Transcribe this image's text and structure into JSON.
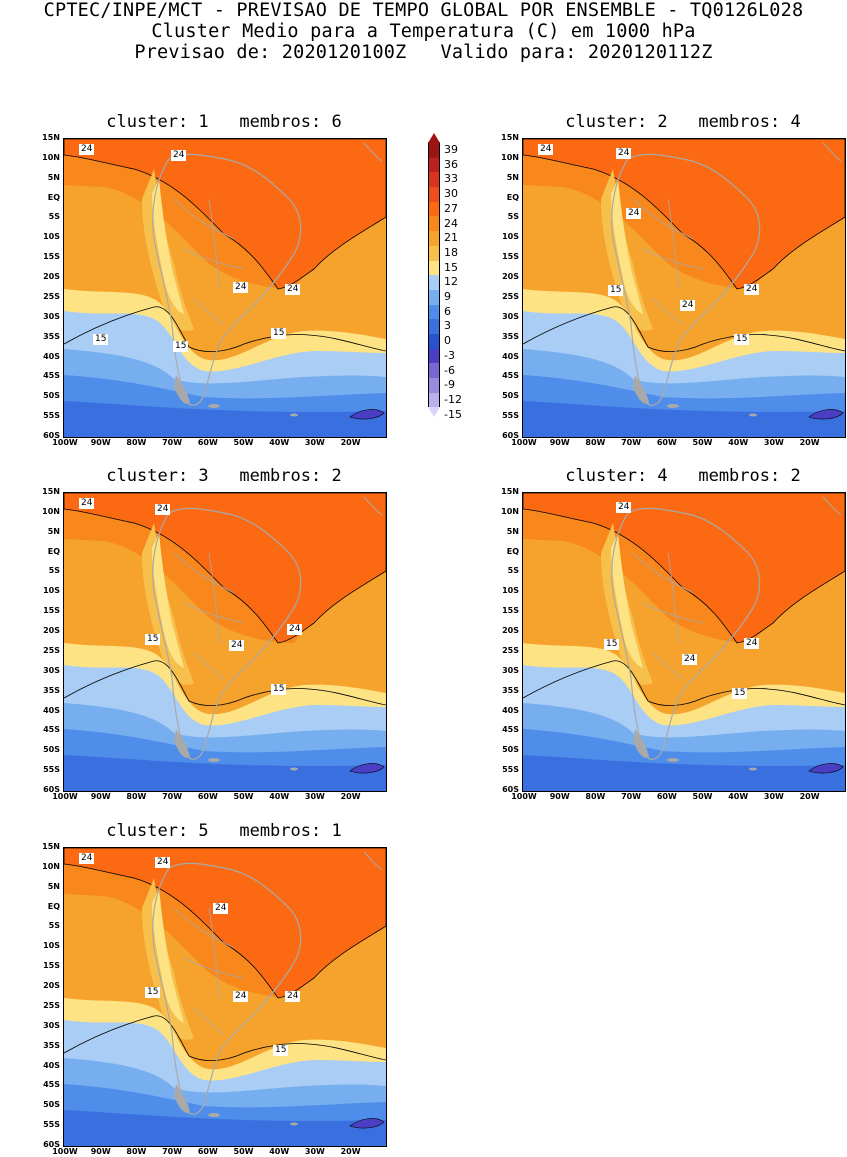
{
  "header": {
    "line1": "CPTEC/INPE/MCT - PREVISAO DE TEMPO GLOBAL POR ENSEMBLE - TQ0126L028",
    "line2": "Cluster Medio para a Temperatura (C) em 1000 hPa",
    "line3": "Previsao de: 2020120100Z   Valido para: 2020120112Z"
  },
  "axes": {
    "lat_labels": [
      "15N",
      "10N",
      "5N",
      "EQ",
      "5S",
      "10S",
      "15S",
      "20S",
      "25S",
      "30S",
      "35S",
      "40S",
      "45S",
      "50S",
      "55S",
      "60S"
    ],
    "lon_labels": [
      "100W",
      "90W",
      "80W",
      "70W",
      "60W",
      "50W",
      "40W",
      "30W",
      "20W"
    ]
  },
  "colorbar": {
    "labels": [
      "39",
      "36",
      "33",
      "30",
      "27",
      "24",
      "21",
      "18",
      "15",
      "12",
      "9",
      "6",
      "3",
      "0",
      "-3",
      "-6",
      "-9",
      "-12",
      "-15"
    ],
    "colors": [
      "#9c1414",
      "#bd2020",
      "#d9341e",
      "#ef4e1c",
      "#fb6a12",
      "#f8871c",
      "#f5a32c",
      "#f7c04d",
      "#fde384",
      "#a9cdf5",
      "#76aef0",
      "#4f8deb",
      "#3a6fe0",
      "#2a51d0",
      "#4a3ec4",
      "#7866d3",
      "#9a8ae0",
      "#bcb0ec",
      "#dad4f6"
    ]
  },
  "panels": [
    {
      "title": "cluster: 1   membros: 6",
      "labels": [
        {
          "text": "24"
        },
        {
          "text": "24"
        },
        {
          "text": "24"
        },
        {
          "text": "24"
        },
        {
          "text": "15"
        },
        {
          "text": "15"
        },
        {
          "text": "15"
        }
      ]
    },
    {
      "title": "cluster: 2   membros: 4",
      "labels": [
        {
          "text": "24"
        },
        {
          "text": "24"
        },
        {
          "text": "24"
        },
        {
          "text": "24"
        },
        {
          "text": "24"
        },
        {
          "text": "15"
        },
        {
          "text": "15"
        }
      ]
    },
    {
      "title": "cluster: 3   membros: 2",
      "labels": [
        {
          "text": "24"
        },
        {
          "text": "24"
        },
        {
          "text": "24"
        },
        {
          "text": "24"
        },
        {
          "text": "15"
        },
        {
          "text": "15"
        }
      ]
    },
    {
      "title": "cluster: 4   membros: 2",
      "labels": [
        {
          "text": "24"
        },
        {
          "text": "24"
        },
        {
          "text": "24"
        },
        {
          "text": "15"
        },
        {
          "text": "15"
        }
      ]
    },
    {
      "title": "cluster: 5   membros: 1",
      "labels": [
        {
          "text": "24"
        },
        {
          "text": "24"
        },
        {
          "text": "24"
        },
        {
          "text": "24"
        },
        {
          "text": "24"
        },
        {
          "text": "15"
        },
        {
          "text": "15"
        }
      ]
    }
  ]
}
